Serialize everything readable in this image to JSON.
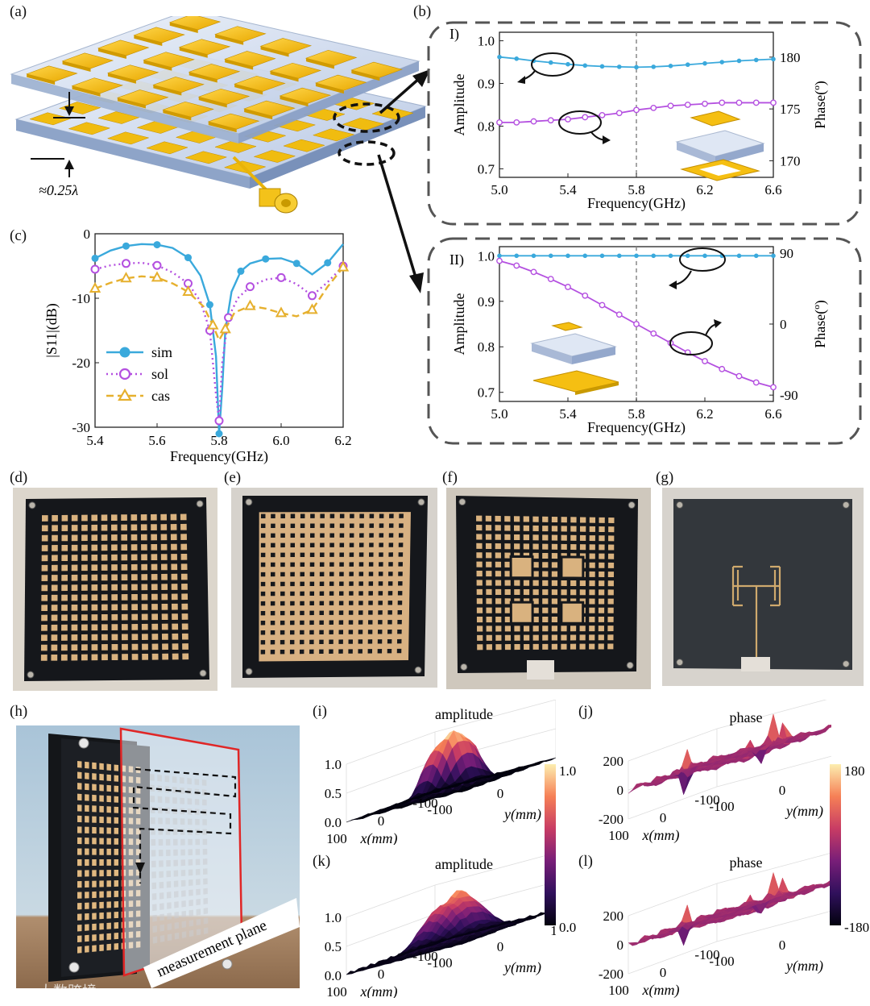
{
  "panels": {
    "a": "(a)",
    "b": "(b)",
    "c": "(c)",
    "d": "(d)",
    "e": "(e)",
    "f": "(f)",
    "g": "(g)",
    "h": "(h)",
    "i": "(i)",
    "j": "(j)",
    "k": "(k)",
    "l": "(l)"
  },
  "panel_a": {
    "spacing_label": "≈0.25λ"
  },
  "panel_h": {
    "plane_label": "measurement plane"
  },
  "colors": {
    "sim": "#3aa9dc",
    "sol": "#b450e0",
    "cas": "#e6b02e",
    "gold": "#f5bf12",
    "substrate": "#c9d6ea"
  },
  "chart_data": [
    {
      "id": "b-I",
      "type": "line",
      "roman": "I)",
      "xlabel": "Frequency(GHz)",
      "ylabel": "Amplitude",
      "ylabel_right": "Phase(º)",
      "xlim": [
        5.0,
        6.6
      ],
      "ylim": [
        0.68,
        1.02
      ],
      "ylim_right": [
        168.4,
        182.4
      ],
      "xticks": [
        "5.0",
        "5.4",
        "5.8",
        "6.2",
        "6.6"
      ],
      "yticks": [
        "0.7",
        "0.8",
        "0.9",
        "1.0"
      ],
      "yticks_right": [
        "170",
        "175",
        "180"
      ],
      "vline": 5.8,
      "x": [
        5.0,
        5.1,
        5.2,
        5.3,
        5.4,
        5.5,
        5.6,
        5.7,
        5.8,
        5.9,
        6.0,
        6.1,
        6.2,
        6.3,
        6.4,
        6.5,
        6.6
      ],
      "series": [
        {
          "axis": "left",
          "color": "#3aa9dc",
          "marker": "dot",
          "values": [
            0.962,
            0.958,
            0.953,
            0.949,
            0.945,
            0.942,
            0.94,
            0.939,
            0.938,
            0.939,
            0.941,
            0.944,
            0.947,
            0.95,
            0.953,
            0.955,
            0.957
          ]
        },
        {
          "axis": "right",
          "color": "#b450e0",
          "marker": "circle",
          "values": [
            173.7,
            173.7,
            173.8,
            173.9,
            174.0,
            174.2,
            174.4,
            174.6,
            174.9,
            175.1,
            175.3,
            175.4,
            175.5,
            175.6,
            175.6,
            175.6,
            175.6
          ]
        }
      ]
    },
    {
      "id": "b-II",
      "type": "line",
      "roman": "II)",
      "xlabel": "Frequency(GHz)",
      "ylabel": "Amplitude",
      "ylabel_right": "Phase(º)",
      "xlim": [
        5.0,
        6.6
      ],
      "ylim": [
        0.68,
        1.02
      ],
      "ylim_right": [
        -98,
        98
      ],
      "xticks": [
        "5.0",
        "5.4",
        "5.8",
        "6.2",
        "6.6"
      ],
      "yticks": [
        "0.7",
        "0.8",
        "0.9",
        "1.0"
      ],
      "yticks_right": [
        "-90",
        "0",
        "90"
      ],
      "vline": 5.8,
      "x": [
        5.0,
        5.1,
        5.2,
        5.3,
        5.4,
        5.5,
        5.6,
        5.7,
        5.8,
        5.9,
        6.0,
        6.1,
        6.2,
        6.3,
        6.4,
        6.5,
        6.6
      ],
      "series": [
        {
          "axis": "left",
          "color": "#3aa9dc",
          "marker": "dot",
          "values": [
            1.0,
            1.0,
            1.0,
            1.0,
            1.0,
            1.0,
            1.0,
            1.0,
            1.0,
            1.0,
            1.0,
            1.0,
            1.0,
            1.0,
            1.0,
            1.0,
            1.0
          ]
        },
        {
          "axis": "right",
          "color": "#b450e0",
          "marker": "circle",
          "values": [
            80,
            74,
            66,
            57,
            47,
            36,
            24,
            12,
            0,
            -12,
            -24,
            -36,
            -47,
            -57,
            -66,
            -74,
            -80
          ]
        }
      ]
    },
    {
      "id": "c",
      "type": "line",
      "xlabel": "Frequency(GHz)",
      "ylabel": "|S11|(dB)",
      "xlim": [
        5.4,
        6.2
      ],
      "ylim": [
        -30,
        0
      ],
      "xticks": [
        "5.4",
        "5.6",
        "5.8",
        "6.0",
        "6.2"
      ],
      "yticks": [
        "-30",
        "-20",
        "-10",
        "0"
      ],
      "legend": [
        "sim",
        "sol",
        "cas"
      ],
      "series": [
        {
          "name": "sim",
          "color": "#3aa9dc",
          "style": "solid",
          "marker": "dot",
          "x": [
            5.4,
            5.45,
            5.5,
            5.55,
            5.6,
            5.65,
            5.7,
            5.74,
            5.77,
            5.79,
            5.8,
            5.81,
            5.82,
            5.84,
            5.87,
            5.9,
            5.95,
            6.0,
            6.05,
            6.1,
            6.15,
            6.2
          ],
          "values": [
            -3.8,
            -2.6,
            -1.9,
            -1.6,
            -1.7,
            -2.2,
            -3.7,
            -6.5,
            -11,
            -19,
            -31,
            -24,
            -15,
            -9,
            -5.8,
            -4.6,
            -3.9,
            -3.8,
            -4.6,
            -6.3,
            -4.5,
            -1.6
          ]
        },
        {
          "name": "sol",
          "color": "#b450e0",
          "style": "dotted",
          "marker": "circle",
          "x": [
            5.4,
            5.45,
            5.5,
            5.55,
            5.6,
            5.65,
            5.7,
            5.74,
            5.77,
            5.79,
            5.8,
            5.81,
            5.83,
            5.86,
            5.9,
            5.95,
            6.0,
            6.05,
            6.1,
            6.15,
            6.2
          ],
          "values": [
            -5.5,
            -4.9,
            -4.6,
            -4.5,
            -4.9,
            -6.0,
            -7.7,
            -10.5,
            -15,
            -25,
            -29,
            -20,
            -13,
            -10,
            -8.2,
            -7.1,
            -6.8,
            -7.8,
            -9.6,
            -7.5,
            -5.0
          ]
        },
        {
          "name": "cas",
          "color": "#e6b02e",
          "style": "dashed",
          "marker": "triangle",
          "x": [
            5.4,
            5.45,
            5.5,
            5.55,
            5.6,
            5.65,
            5.7,
            5.75,
            5.78,
            5.8,
            5.82,
            5.85,
            5.9,
            5.95,
            6.0,
            6.05,
            6.1,
            6.15,
            6.2
          ],
          "values": [
            -8.5,
            -7.6,
            -6.9,
            -6.6,
            -6.8,
            -7.7,
            -9.0,
            -11.3,
            -14.2,
            -16.5,
            -14.8,
            -12.2,
            -11.2,
            -11.6,
            -12.3,
            -12.8,
            -11.8,
            -8.2,
            -5.2
          ]
        }
      ]
    },
    {
      "id": "i",
      "type": "surface",
      "title": "amplitude",
      "zticks": [
        "0.0",
        "0.5",
        "1.0"
      ],
      "xticks": [
        "100",
        "0",
        "-100"
      ],
      "yticks": [
        "-100",
        "0",
        "100"
      ],
      "xlabel": "x(mm)",
      "ylabel": "y(mm)"
    },
    {
      "id": "j",
      "type": "surface",
      "title": "phase",
      "zticks": [
        "-200",
        "0",
        "200"
      ],
      "xticks": [
        "100",
        "0",
        "-100"
      ],
      "yticks": [
        "-100",
        "0",
        "100"
      ],
      "xlabel": "x(mm)",
      "ylabel": "y(mm)"
    },
    {
      "id": "k",
      "type": "surface",
      "title": "amplitude",
      "zticks": [
        "0.0",
        "0.5",
        "1.0"
      ],
      "xticks": [
        "100",
        "0",
        "-100"
      ],
      "yticks": [
        "-100",
        "0",
        "100"
      ],
      "xlabel": "x(mm)",
      "ylabel": "y(mm)"
    },
    {
      "id": "l",
      "type": "surface",
      "title": "phase",
      "zticks": [
        "-200",
        "0",
        "200"
      ],
      "xticks": [
        "100",
        "0",
        "-100"
      ],
      "yticks": [
        "-100",
        "0",
        "100"
      ],
      "xlabel": "x(mm)",
      "ylabel": "y(mm)"
    },
    {
      "id": "cbar-amp",
      "type": "colorbar",
      "ticks": [
        "1.0",
        "0.0"
      ]
    },
    {
      "id": "cbar-phase",
      "type": "colorbar",
      "ticks": [
        "180",
        "-180"
      ]
    }
  ],
  "watermark": "大数跨境"
}
